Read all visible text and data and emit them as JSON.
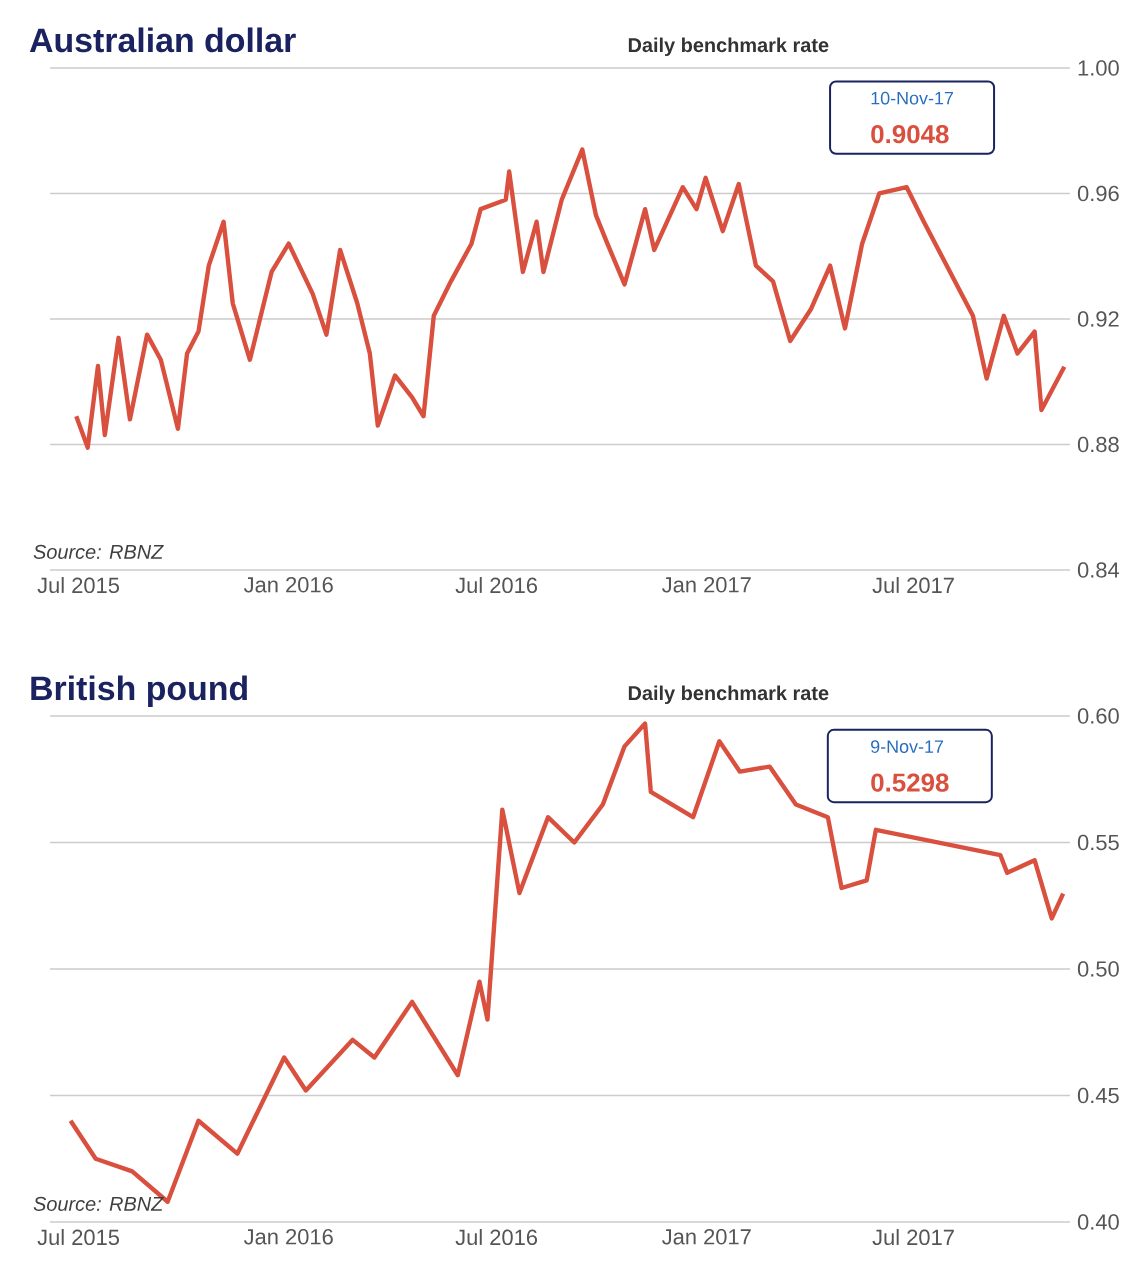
{
  "chart_data": [
    {
      "type": "line",
      "title": "Australian dollar",
      "subtitle": "Daily benchmark rate",
      "x": [
        "2015-06-29",
        "2015-07-09",
        "2015-07-18",
        "2015-07-24",
        "2015-08-05",
        "2015-08-15",
        "2015-08-30",
        "2015-09-11",
        "2015-09-26",
        "2015-10-04",
        "2015-10-14",
        "2015-10-23",
        "2015-11-05",
        "2015-11-13",
        "2015-11-28",
        "2015-12-17",
        "2016-01-01",
        "2016-01-22",
        "2016-02-03",
        "2016-02-15",
        "2016-03-01",
        "2016-03-12",
        "2016-03-19",
        "2016-04-03",
        "2016-04-18",
        "2016-04-28",
        "2016-05-07",
        "2016-05-22",
        "2016-06-09",
        "2016-06-17",
        "2016-07-09",
        "2016-07-12",
        "2016-07-24",
        "2016-08-05",
        "2016-08-11",
        "2016-08-27",
        "2016-09-14",
        "2016-09-26",
        "2016-10-06",
        "2016-10-21",
        "2016-11-08",
        "2016-11-16",
        "2016-12-11",
        "2016-12-23",
        "2016-12-31",
        "2017-01-15",
        "2017-01-29",
        "2017-02-13",
        "2017-02-28",
        "2017-03-15",
        "2017-04-02",
        "2017-04-19",
        "2017-05-02",
        "2017-05-17",
        "2017-06-01",
        "2017-06-25",
        "2017-07-10",
        "2017-08-22",
        "2017-09-03",
        "2017-09-18",
        "2017-09-30",
        "2017-10-15",
        "2017-10-21",
        "2017-11-10"
      ],
      "series": [
        {
          "color": "#d9503f",
          "values": [
            0.889,
            0.879,
            0.905,
            0.883,
            0.914,
            0.888,
            0.915,
            0.907,
            0.885,
            0.909,
            0.916,
            0.937,
            0.951,
            0.925,
            0.907,
            0.935,
            0.944,
            0.928,
            0.915,
            0.942,
            0.925,
            0.909,
            0.886,
            0.902,
            0.895,
            0.889,
            0.921,
            0.932,
            0.944,
            0.955,
            0.958,
            0.967,
            0.935,
            0.951,
            0.935,
            0.958,
            0.974,
            0.953,
            0.944,
            0.931,
            0.955,
            0.942,
            0.962,
            0.955,
            0.965,
            0.948,
            0.963,
            0.937,
            0.932,
            0.913,
            0.923,
            0.937,
            0.917,
            0.944,
            0.96,
            0.962,
            0.951,
            0.921,
            0.901,
            0.921,
            0.909,
            0.916,
            0.891,
            0.9048
          ]
        }
      ],
      "xlim": [
        "2015-06-06",
        "2017-11-15"
      ],
      "xticks": [
        {
          "value": "2015-07-01",
          "label": "Jul 2015"
        },
        {
          "value": "2016-01-01",
          "label": "Jan 2016"
        },
        {
          "value": "2016-07-01",
          "label": "Jul 2016"
        },
        {
          "value": "2017-01-01",
          "label": "Jan 2017"
        },
        {
          "value": "2017-07-01",
          "label": "Jul 2017"
        }
      ],
      "ylim": [
        0.84,
        1.0
      ],
      "yticks": [
        {
          "value": 0.84,
          "label": "0.84"
        },
        {
          "value": 0.88,
          "label": "0.88"
        },
        {
          "value": 0.92,
          "label": "0.92"
        },
        {
          "value": 0.96,
          "label": "0.96"
        },
        {
          "value": 1.0,
          "label": "1.00"
        }
      ],
      "grid": "y",
      "annotations": [
        "Source: RBNZ",
        "10-Nov-17",
        "0.9048"
      ]
    },
    {
      "type": "line",
      "title": "British pound",
      "subtitle": "Daily benchmark rate",
      "x": [
        "2015-06-24",
        "2015-07-16",
        "2015-08-17",
        "2015-09-17",
        "2015-10-14",
        "2015-11-17",
        "2015-12-28",
        "2016-01-16",
        "2016-02-26",
        "2016-03-16",
        "2016-04-18",
        "2016-05-28",
        "2016-06-16",
        "2016-06-23",
        "2016-07-06",
        "2016-07-21",
        "2016-08-15",
        "2016-09-07",
        "2016-10-02",
        "2016-10-21",
        "2016-11-08",
        "2016-11-13",
        "2016-12-20",
        "2017-01-12",
        "2017-01-30",
        "2017-02-25",
        "2017-03-20",
        "2017-04-17",
        "2017-04-29",
        "2017-05-21",
        "2017-05-29",
        "2017-09-15",
        "2017-09-21",
        "2017-10-15",
        "2017-10-30",
        "2017-11-09"
      ],
      "series": [
        {
          "color": "#d9503f",
          "values": [
            0.44,
            0.425,
            0.42,
            0.408,
            0.44,
            0.427,
            0.465,
            0.452,
            0.472,
            0.465,
            0.487,
            0.458,
            0.495,
            0.48,
            0.563,
            0.53,
            0.56,
            0.55,
            0.565,
            0.588,
            0.597,
            0.57,
            0.56,
            0.59,
            0.578,
            0.58,
            0.565,
            0.56,
            0.532,
            0.535,
            0.555,
            0.545,
            0.538,
            0.543,
            0.52,
            0.5298
          ]
        }
      ],
      "xlim": [
        "2015-06-06",
        "2017-11-15"
      ],
      "xticks": [
        {
          "value": "2015-07-01",
          "label": "Jul 2015"
        },
        {
          "value": "2016-01-01",
          "label": "Jan 2016"
        },
        {
          "value": "2016-07-01",
          "label": "Jul 2016"
        },
        {
          "value": "2017-01-01",
          "label": "Jan 2017"
        },
        {
          "value": "2017-07-01",
          "label": "Jul 2017"
        }
      ],
      "ylim": [
        0.4,
        0.6
      ],
      "yticks": [
        {
          "value": 0.4,
          "label": "0.40"
        },
        {
          "value": 0.45,
          "label": "0.45"
        },
        {
          "value": 0.5,
          "label": "0.50"
        },
        {
          "value": 0.55,
          "label": "0.55"
        },
        {
          "value": 0.6,
          "label": "0.60"
        }
      ],
      "grid": "y",
      "annotations": [
        "Source: RBNZ",
        "9-Nov-17",
        "0.5298"
      ]
    }
  ]
}
